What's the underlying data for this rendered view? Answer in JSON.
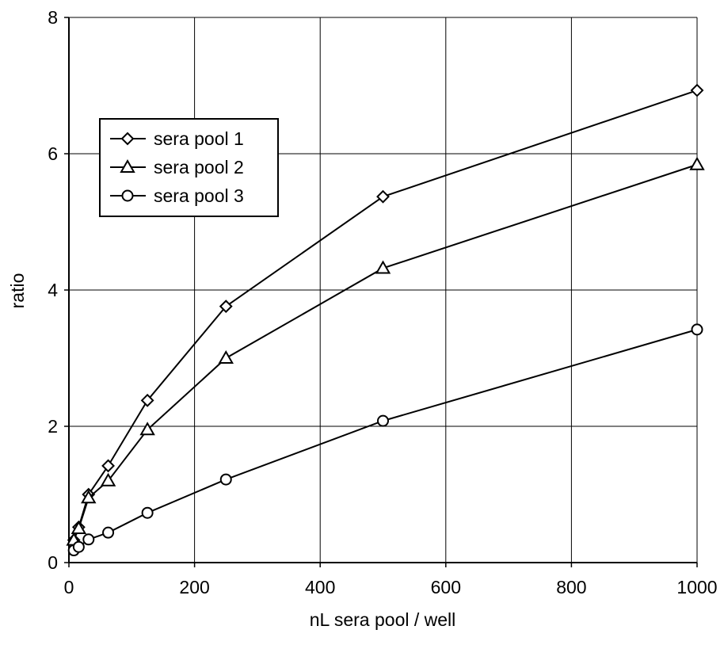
{
  "chart_data": {
    "type": "line",
    "xlabel": "nL sera pool / well",
    "ylabel": "ratio",
    "xlim": [
      0,
      1000
    ],
    "ylim": [
      0,
      8
    ],
    "xticks": [
      0,
      200,
      400,
      600,
      800,
      1000
    ],
    "yticks": [
      0,
      2,
      4,
      6,
      8
    ],
    "grid": true,
    "legend_position": "upper-left",
    "series": [
      {
        "name": "sera pool 1",
        "marker": "diamond",
        "x": [
          7.8,
          15.6,
          31.25,
          62.5,
          125,
          250,
          500,
          1000
        ],
        "y": [
          0.33,
          0.52,
          1.0,
          1.42,
          2.38,
          3.76,
          5.37,
          6.93
        ]
      },
      {
        "name": "sera pool 2",
        "marker": "triangle",
        "x": [
          7.8,
          15.6,
          31.25,
          62.5,
          125,
          250,
          500,
          1000
        ],
        "y": [
          0.33,
          0.5,
          0.95,
          1.2,
          1.95,
          3.0,
          4.32,
          5.84
        ]
      },
      {
        "name": "sera pool 3",
        "marker": "circle",
        "x": [
          7.8,
          15.6,
          31.25,
          62.5,
          125,
          250,
          500,
          1000
        ],
        "y": [
          0.18,
          0.23,
          0.34,
          0.44,
          0.73,
          1.22,
          2.08,
          3.42
        ]
      }
    ]
  }
}
